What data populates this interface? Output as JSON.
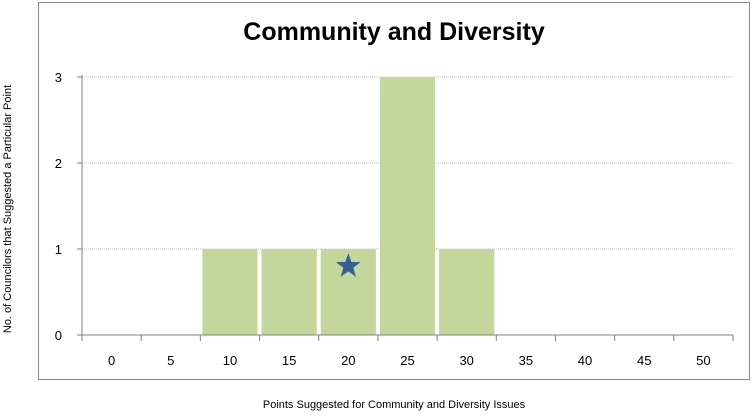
{
  "chart_data": {
    "type": "bar",
    "title": "Community and Diversity",
    "xlabel": "Points Suggested for Community and Diversity Issues",
    "ylabel": "No. of Councilors that Suggested a Particular Point",
    "categories": [
      "0",
      "5",
      "10",
      "15",
      "20",
      "25",
      "30",
      "35",
      "40",
      "45",
      "50"
    ],
    "values": [
      0,
      0,
      1,
      1,
      1,
      3,
      1,
      0,
      0,
      0,
      0
    ],
    "yticks": [
      "0",
      "1",
      "2",
      "3"
    ],
    "ylim": [
      0,
      3
    ],
    "grid": "horizontal",
    "legend": "none",
    "bar_color": "#c3d69b",
    "grid_color": "#bfbfbf",
    "marker": {
      "shape": "star",
      "x": 20,
      "y": 0.8,
      "color": "#376092"
    }
  }
}
